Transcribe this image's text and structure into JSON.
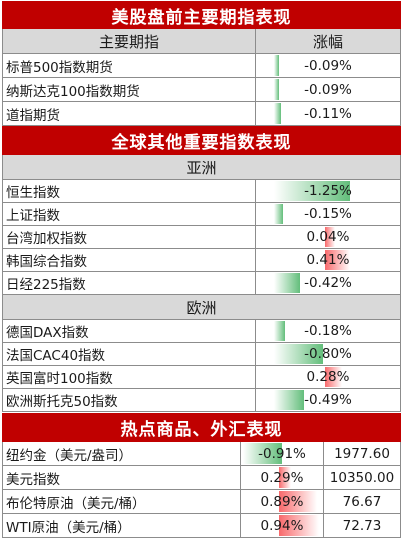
{
  "sections": {
    "us_title": "美股盘前主要期指表现",
    "us_col_name": "主要期指",
    "us_col_change": "涨幅",
    "global_title": "全球其他重要指数表现",
    "asia_label": "亚洲",
    "europe_label": "欧洲",
    "commodity_title": "热点商品、外汇表现"
  },
  "us_futures": [
    {
      "name": "标普500指数期货",
      "change": "-0.09%",
      "pct": -0.09
    },
    {
      "name": "纳斯达克100指数期货",
      "change": "-0.09%",
      "pct": -0.09
    },
    {
      "name": "道指期货",
      "change": "-0.11%",
      "pct": -0.11
    }
  ],
  "asia": [
    {
      "name": "恒生指数",
      "change": "-1.25%",
      "pct": -1.25
    },
    {
      "name": "上证指数",
      "change": "-0.15%",
      "pct": -0.15
    },
    {
      "name": "台湾加权指数",
      "change": "0.04%",
      "pct": 0.04
    },
    {
      "name": "韩国综合指数",
      "change": "0.41%",
      "pct": 0.41
    },
    {
      "name": "日经225指数",
      "change": "-0.42%",
      "pct": -0.42
    }
  ],
  "europe": [
    {
      "name": "德国DAX指数",
      "change": "-0.18%",
      "pct": -0.18
    },
    {
      "name": "法国CAC40指数",
      "change": "-0.80%",
      "pct": -0.8
    },
    {
      "name": "英国富时100指数",
      "change": "0.28%",
      "pct": 0.28
    },
    {
      "name": "欧洲斯托克50指数",
      "change": "-0.49%",
      "pct": -0.49
    }
  ],
  "commodities": [
    {
      "name": "纽约金（美元/盎司）",
      "change": "-0.91%",
      "pct": -0.91,
      "price": "1977.60"
    },
    {
      "name": "美元指数",
      "change": "0.29%",
      "pct": 0.29,
      "price": "10350.00"
    },
    {
      "name": "布伦特原油（美元/桶）",
      "change": "0.89%",
      "pct": 0.89,
      "price": "76.67"
    },
    {
      "name": "WTI原油（美元/桶）",
      "change": "0.94%",
      "pct": 0.94,
      "price": "72.73"
    }
  ],
  "colors": {
    "banner": "#c00000",
    "subhead": "#d9d9d9",
    "negative_bar": "#63be7b",
    "positive_bar": "#f8696b"
  }
}
